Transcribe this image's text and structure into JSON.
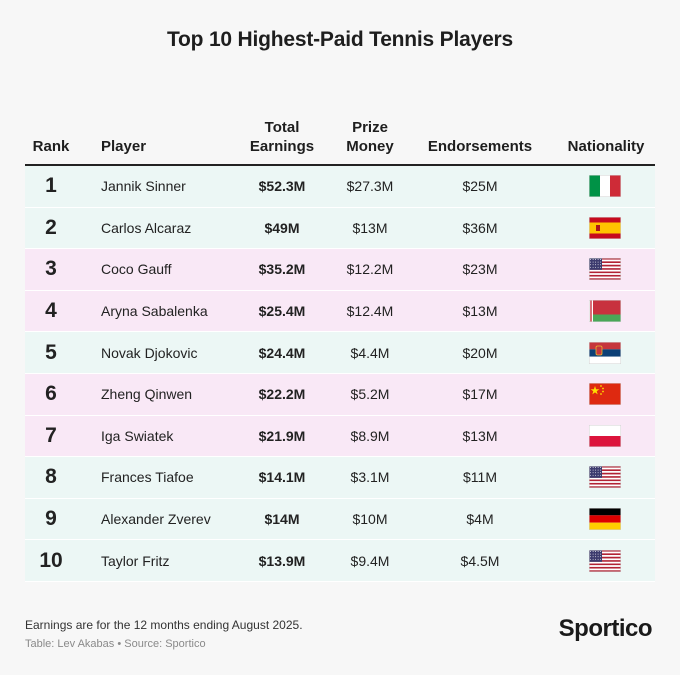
{
  "title": "Top 10 Highest-Paid Tennis Players",
  "headers": {
    "rank": "Rank",
    "player": "Player",
    "total_l1": "Total",
    "total_l2": "Earnings",
    "prize_l1": "Prize",
    "prize_l2": "Money",
    "endorsements": "Endorsements",
    "nationality": "Nationality"
  },
  "colors": {
    "atp_row": "#ecf7f5",
    "wta_row": "#f9e8f6"
  },
  "chart_data": {
    "type": "table",
    "title": "Top 10 Highest-Paid Tennis Players",
    "columns": [
      "Rank",
      "Player",
      "Total Earnings",
      "Prize Money",
      "Endorsements",
      "Nationality"
    ],
    "rows": [
      {
        "rank": "1",
        "player": "Jannik Sinner",
        "total": "$52.3M",
        "prize": "$27.3M",
        "endorsements": "$25M",
        "flag": "italy",
        "tour": "atp"
      },
      {
        "rank": "2",
        "player": "Carlos Alcaraz",
        "total": "$49M",
        "prize": "$13M",
        "endorsements": "$36M",
        "flag": "spain",
        "tour": "atp"
      },
      {
        "rank": "3",
        "player": "Coco Gauff",
        "total": "$35.2M",
        "prize": "$12.2M",
        "endorsements": "$23M",
        "flag": "usa",
        "tour": "wta"
      },
      {
        "rank": "4",
        "player": "Aryna Sabalenka",
        "total": "$25.4M",
        "prize": "$12.4M",
        "endorsements": "$13M",
        "flag": "belarus",
        "tour": "wta"
      },
      {
        "rank": "5",
        "player": "Novak Djokovic",
        "total": "$24.4M",
        "prize": "$4.4M",
        "endorsements": "$20M",
        "flag": "serbia",
        "tour": "atp"
      },
      {
        "rank": "6",
        "player": "Zheng Qinwen",
        "total": "$22.2M",
        "prize": "$5.2M",
        "endorsements": "$17M",
        "flag": "china",
        "tour": "wta"
      },
      {
        "rank": "7",
        "player": "Iga Swiatek",
        "total": "$21.9M",
        "prize": "$8.9M",
        "endorsements": "$13M",
        "flag": "poland",
        "tour": "wta"
      },
      {
        "rank": "8",
        "player": "Frances Tiafoe",
        "total": "$14.1M",
        "prize": "$3.1M",
        "endorsements": "$11M",
        "flag": "usa",
        "tour": "atp"
      },
      {
        "rank": "9",
        "player": "Alexander Zverev",
        "total": "$14M",
        "prize": "$10M",
        "endorsements": "$4M",
        "flag": "germany",
        "tour": "atp"
      },
      {
        "rank": "10",
        "player": "Taylor Fritz",
        "total": "$13.9M",
        "prize": "$9.4M",
        "endorsements": "$4.5M",
        "flag": "usa",
        "tour": "atp"
      }
    ]
  },
  "footnote": "Earnings are for the 12 months ending August 2025.",
  "credit": "Table: Lev Akabas • Source: Sportico",
  "logo": "Sportico"
}
